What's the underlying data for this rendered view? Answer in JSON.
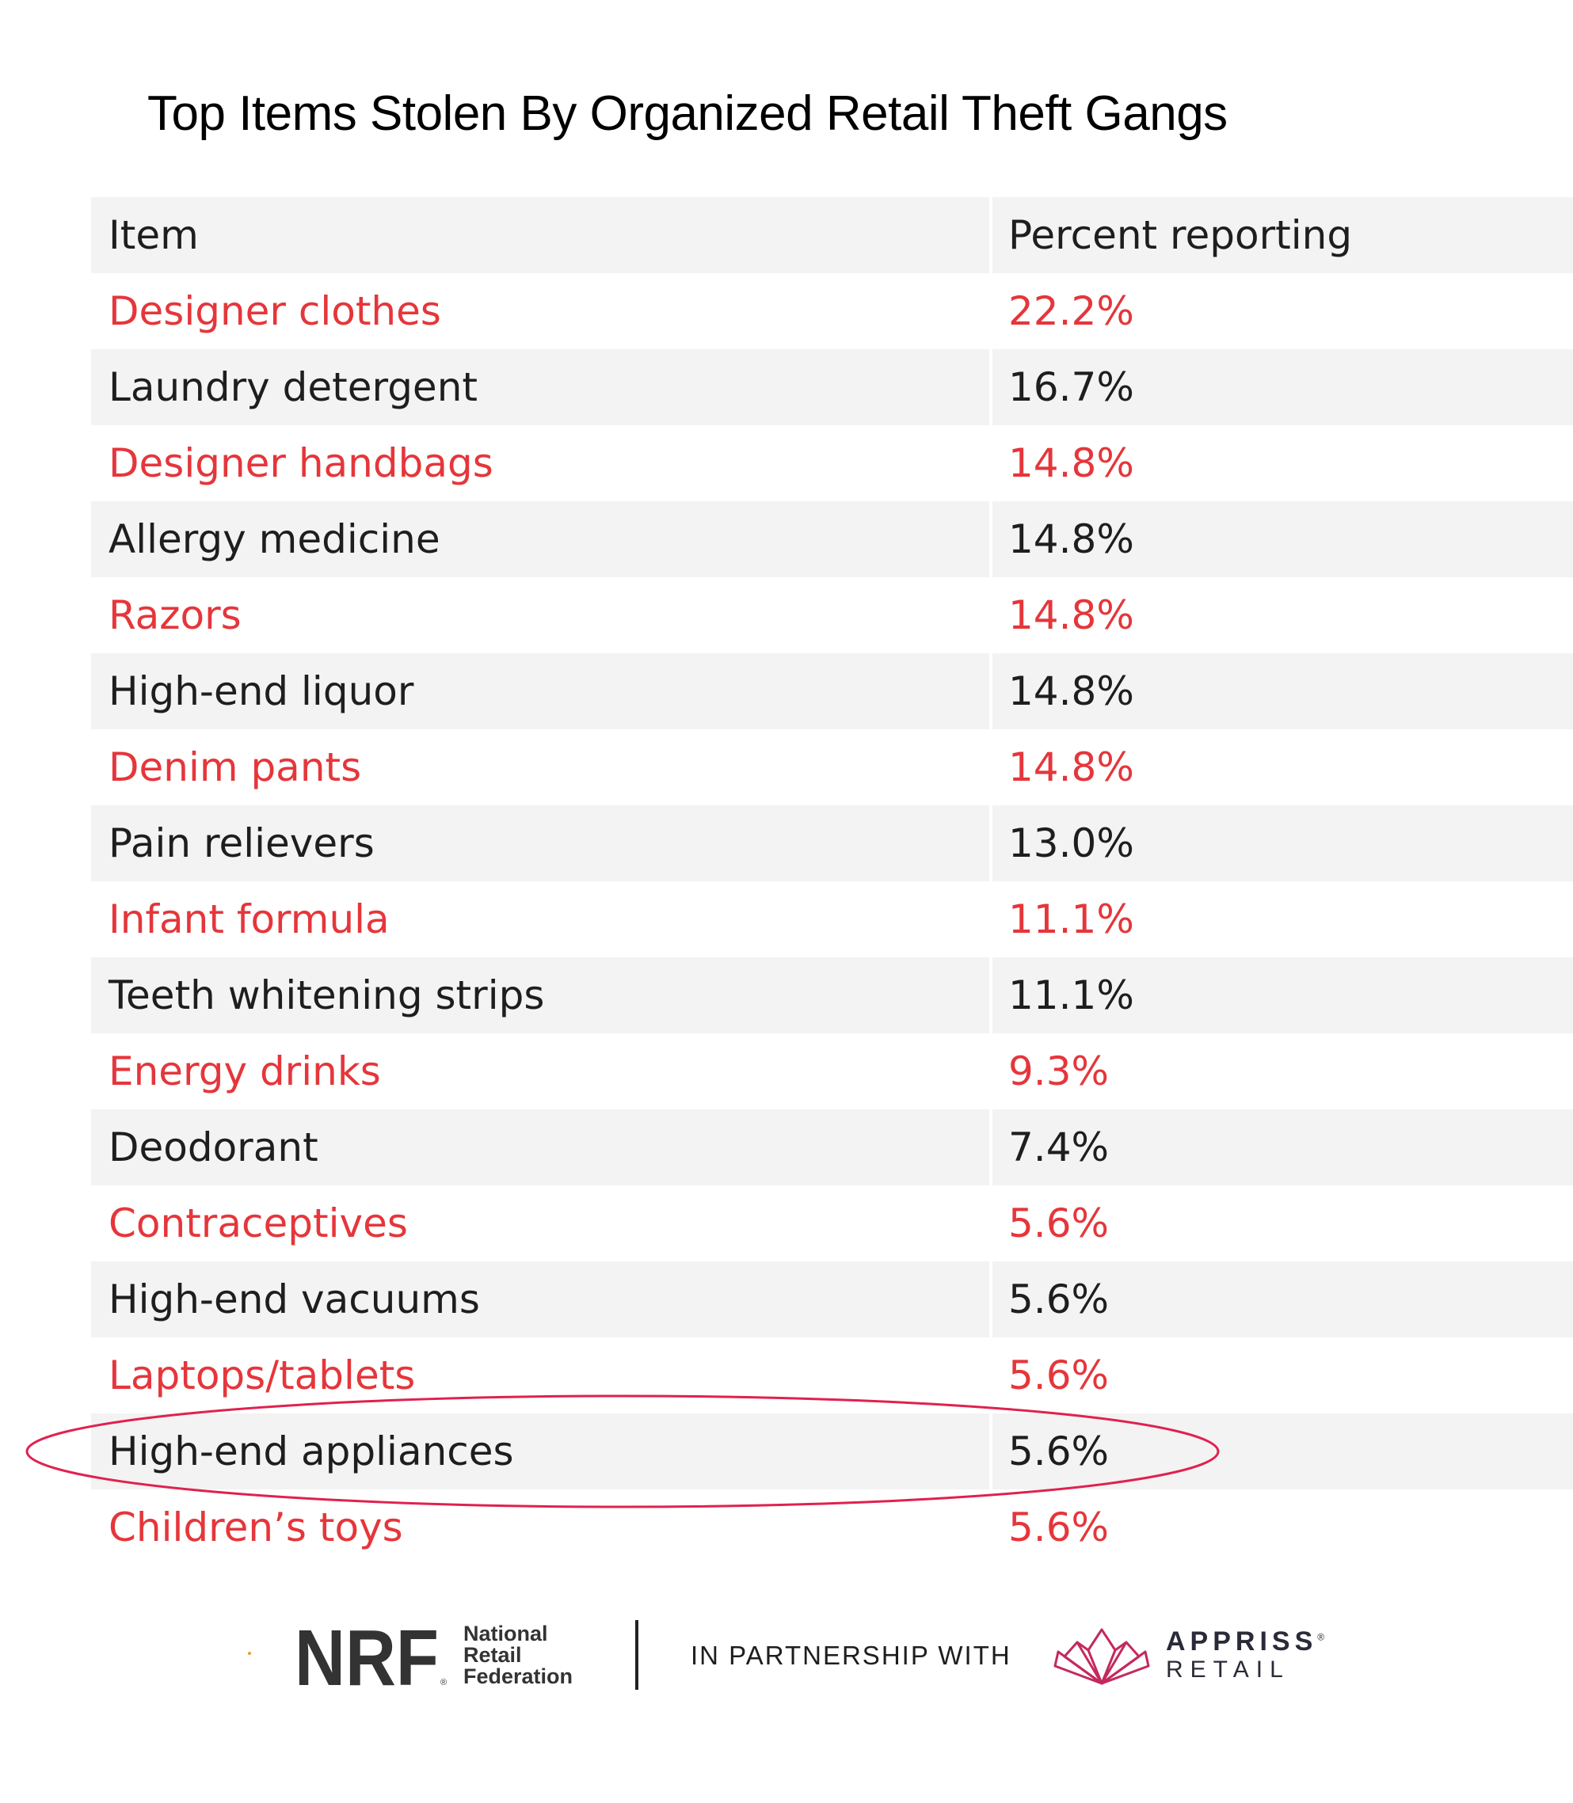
{
  "title": "Top Items Stolen By Organized Retail Theft Gangs",
  "table": {
    "headers": [
      "Item",
      "Percent reporting"
    ],
    "rows": [
      {
        "item": "Designer clothes",
        "percent": "22.2%"
      },
      {
        "item": "Laundry detergent",
        "percent": "16.7%"
      },
      {
        "item": "Designer handbags",
        "percent": "14.8%"
      },
      {
        "item": "Allergy medicine",
        "percent": "14.8%"
      },
      {
        "item": "Razors",
        "percent": "14.8%"
      },
      {
        "item": "High-end liquor",
        "percent": "14.8%"
      },
      {
        "item": "Denim pants",
        "percent": "14.8%"
      },
      {
        "item": "Pain relievers",
        "percent": "13.0%"
      },
      {
        "item": "Infant formula",
        "percent": "11.1%"
      },
      {
        "item": "Teeth whitening strips",
        "percent": "11.1%"
      },
      {
        "item": "Energy drinks",
        "percent": "9.3%"
      },
      {
        "item": "Deodorant",
        "percent": "7.4%"
      },
      {
        "item": "Contraceptives",
        "percent": "5.6%"
      },
      {
        "item": "High-end vacuums",
        "percent": "5.6%"
      },
      {
        "item": "Laptops/tablets",
        "percent": "5.6%"
      },
      {
        "item": "High-end appliances",
        "percent": "5.6%"
      },
      {
        "item": "Children’s toys",
        "percent": "5.6%"
      }
    ]
  },
  "highlighted_row": "High-end appliances",
  "colors": {
    "accent_text": "#e5363b",
    "plain_text": "#1e1e1e",
    "stripe": "#f3f3f3",
    "highlight_ellipse": "#e0214f"
  },
  "footer": {
    "nrf_logo": "NRF",
    "nrf_reg": "®",
    "nrf_name": [
      "National",
      "Retail",
      "Federation"
    ],
    "partner_text": "IN PARTNERSHIP WITH",
    "appriss_name": "APPRISS",
    "appriss_reg": "®",
    "appriss_sub": "RETAIL"
  }
}
